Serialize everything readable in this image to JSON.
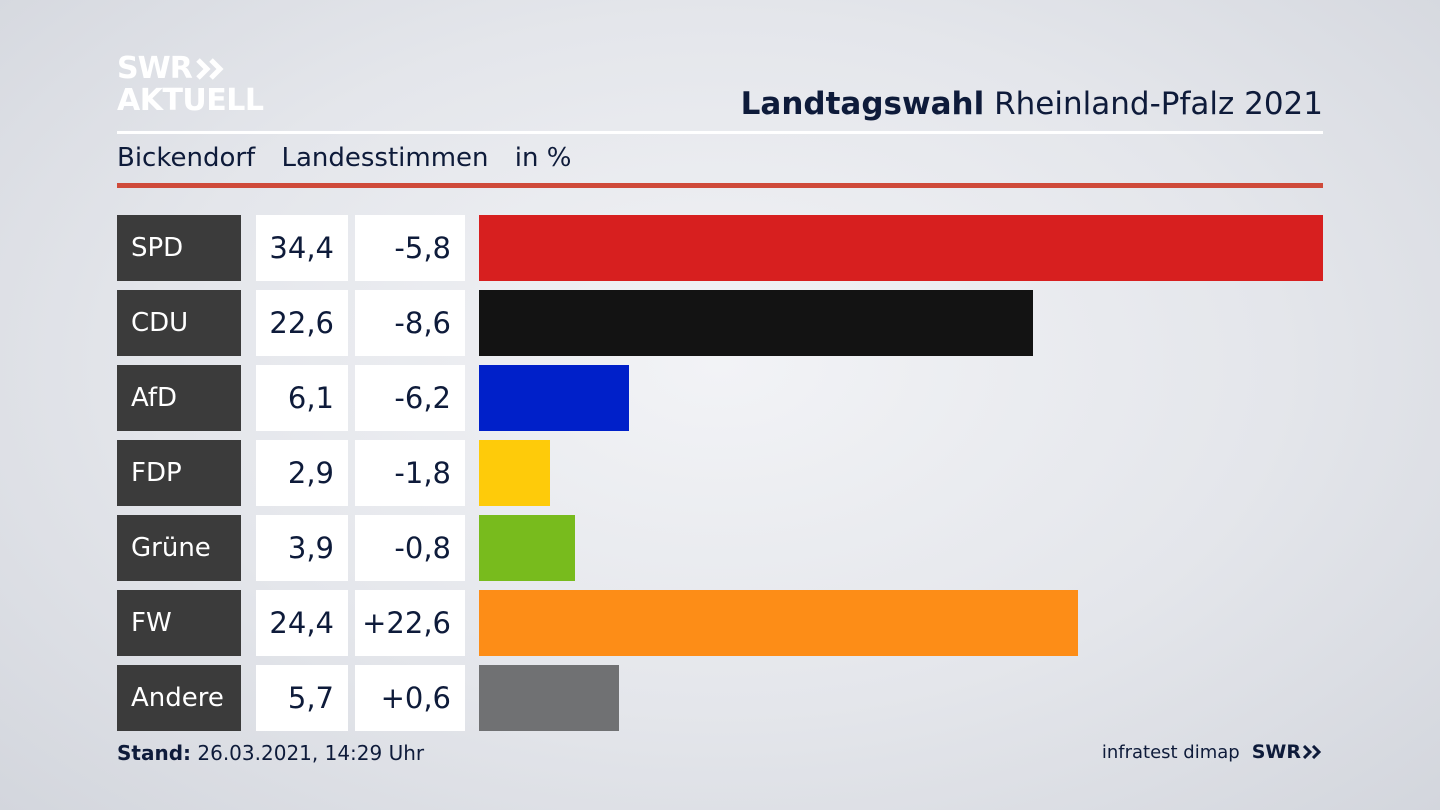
{
  "logo": {
    "line1": "SWR",
    "line2": "AKTUELL"
  },
  "header": {
    "title_bold": "Landtagswahl",
    "title_rest": "Rheinland-Pfalz 2021"
  },
  "subheader": {
    "location": "Bickendorf",
    "measure": "Landesstimmen",
    "unit": "in %"
  },
  "colors": {
    "accent_red_rule": "#cf4a3a",
    "party_cell_bg": "#3b3b3b"
  },
  "chart_data": {
    "type": "bar",
    "categories": [
      "SPD",
      "CDU",
      "AfD",
      "FDP",
      "Grüne",
      "FW",
      "Andere"
    ],
    "values": [
      34.4,
      22.6,
      6.1,
      2.9,
      3.9,
      24.4,
      5.7
    ],
    "value_labels": [
      "34,4",
      "22,6",
      "6,1",
      "2,9",
      "3,9",
      "24,4",
      "5,7"
    ],
    "diff_labels": [
      "-5,8",
      "-8,6",
      "-6,2",
      "-1,8",
      "-0,8",
      "+22,6",
      "+0,6"
    ],
    "colors": [
      "#d71f1f",
      "#131313",
      "#0020c9",
      "#fecb0a",
      "#78bb1d",
      "#fd8d17",
      "#707173"
    ],
    "xlim": [
      0,
      34.4
    ]
  },
  "footer": {
    "stand_label": "Stand:",
    "stand_value": "26.03.2021, 14:29 Uhr",
    "source": "infratest dimap",
    "brand": "SWR"
  }
}
